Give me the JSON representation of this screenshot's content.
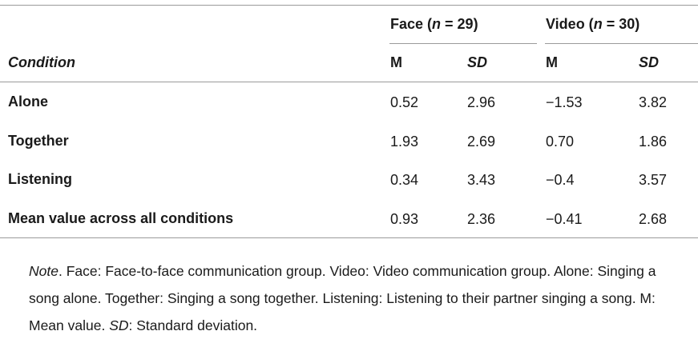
{
  "table": {
    "group_face": {
      "label": "Face (",
      "n_symbol": "n",
      "n_rest": " = 29)"
    },
    "group_video": {
      "label": "Video (",
      "n_symbol": "n",
      "n_rest": " = 30)"
    },
    "condition_header": "Condition",
    "sub_headers": [
      "M",
      "SD",
      "M",
      "SD"
    ],
    "rows": [
      {
        "condition": "Alone",
        "face_m": "0.52",
        "face_sd": "2.96",
        "video_m": "−1.53",
        "video_sd": "3.82"
      },
      {
        "condition": "Together",
        "face_m": "1.93",
        "face_sd": "2.69",
        "video_m": "0.70",
        "video_sd": "1.86"
      },
      {
        "condition": "Listening",
        "face_m": "0.34",
        "face_sd": "3.43",
        "video_m": "−0.4",
        "video_sd": "3.57"
      },
      {
        "condition": "Mean value across all conditions",
        "face_m": "0.93",
        "face_sd": "2.36",
        "video_m": "−0.41",
        "video_sd": "2.68"
      }
    ]
  },
  "note": {
    "lead": "Note",
    "part1": ". Face: Face-to-face communication group. Video: Video communication group. Alone: Singing a song alone. Together: Singing a song together. Listening: Listening to their partner singing a song. M: Mean value. ",
    "sd_term": "SD",
    "part2": ": Standard deviation."
  }
}
